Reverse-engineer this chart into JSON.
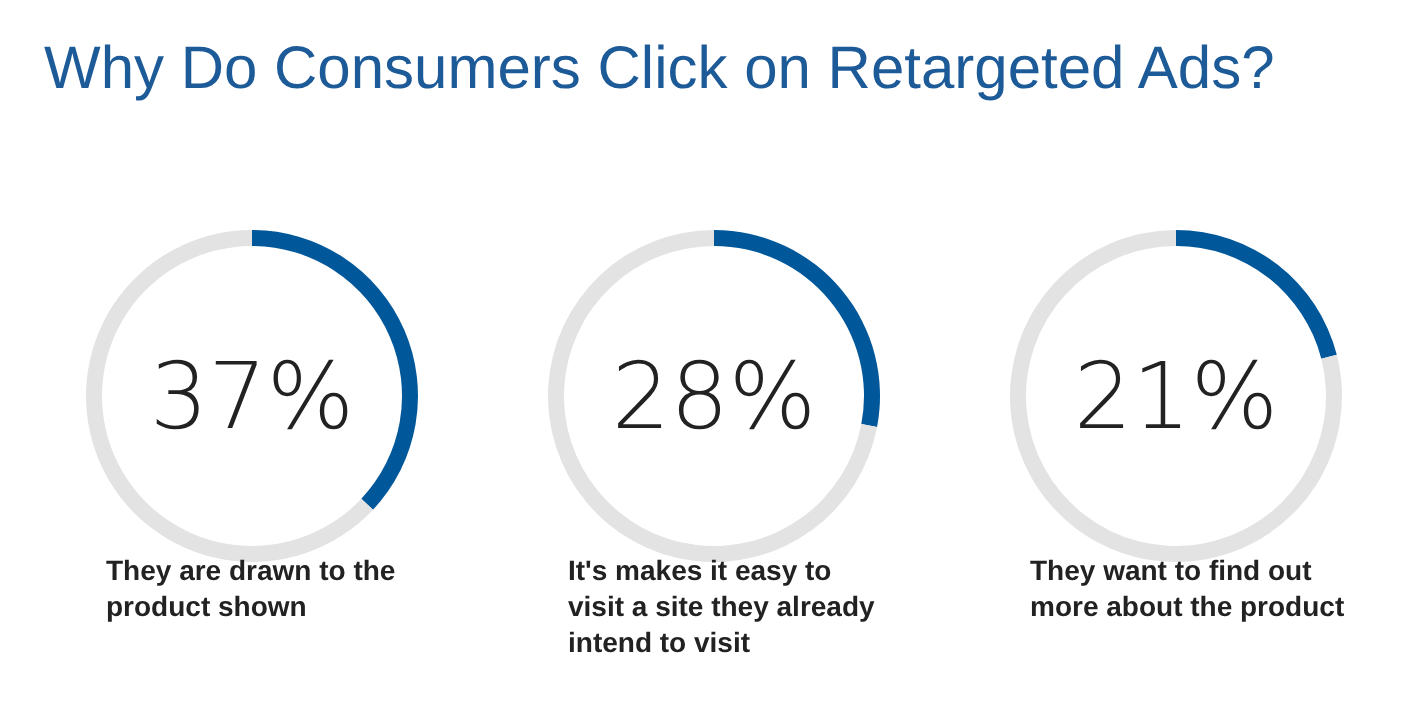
{
  "chart_data": [
    {
      "type": "donut",
      "title": "Why Do Consumers Click on Retargeted Ads?",
      "categories": [
        null,
        null
      ],
      "values": [
        37,
        63
      ],
      "value_labels": [
        "37%",
        null
      ],
      "colors": [
        "#00579a",
        "#e3e3e3"
      ],
      "annotations": [
        "They are drawn to the product shown"
      ]
    },
    {
      "type": "donut",
      "categories": [
        null,
        null
      ],
      "values": [
        28,
        72
      ],
      "value_labels": [
        "28%",
        null
      ],
      "colors": [
        "#00579a",
        "#e3e3e3"
      ],
      "annotations": [
        "It's makes it easy to visit a site they already intend to visit"
      ]
    },
    {
      "type": "donut",
      "categories": [
        null,
        null
      ],
      "values": [
        21,
        79
      ],
      "value_labels": [
        "21%",
        null
      ],
      "colors": [
        "#00579a",
        "#e3e3e3"
      ],
      "annotations": [
        "They want to find out more about the product"
      ]
    }
  ]
}
